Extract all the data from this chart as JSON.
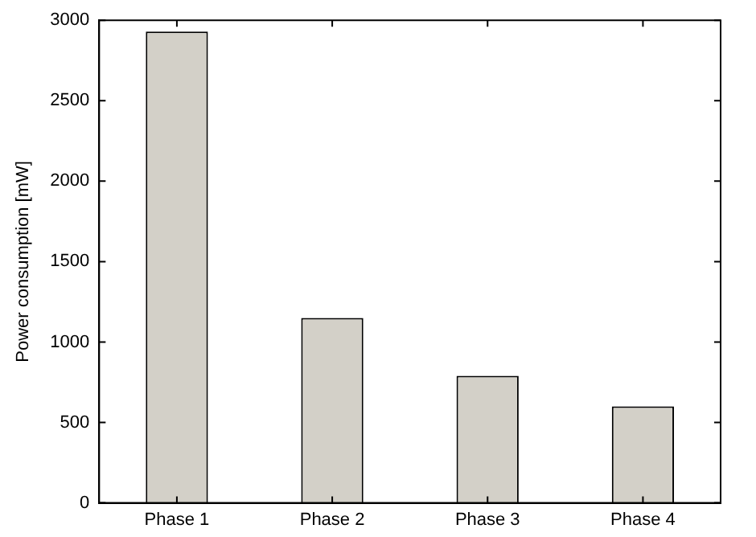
{
  "chart_data": {
    "type": "bar",
    "ylabel": "Power consumption [mW]",
    "categories": [
      "Phase 1",
      "Phase 2",
      "Phase 3",
      "Phase 4"
    ],
    "values": [
      2930,
      1150,
      790,
      600
    ],
    "color": "#d3d0c8",
    "ylim": [
      0,
      3000
    ],
    "yticks": [
      0,
      500,
      1000,
      1500,
      2000,
      2500,
      3000
    ],
    "grid": false,
    "legend": false
  }
}
